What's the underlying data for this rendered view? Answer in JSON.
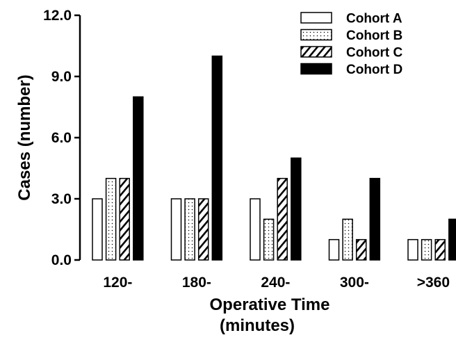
{
  "chart_data": {
    "type": "bar",
    "categories": [
      "120-",
      "180-",
      "240-",
      "300-",
      ">360"
    ],
    "series": [
      {
        "name": "Cohort A",
        "values": [
          3,
          3,
          3,
          1,
          1
        ],
        "pattern": "open"
      },
      {
        "name": "Cohort B",
        "values": [
          4,
          3,
          2,
          2,
          1
        ],
        "pattern": "dotted"
      },
      {
        "name": "Cohort C",
        "values": [
          4,
          3,
          4,
          1,
          1
        ],
        "pattern": "hatched"
      },
      {
        "name": "Cohort D",
        "values": [
          8,
          10,
          5,
          4,
          2
        ],
        "pattern": "solid"
      }
    ],
    "xlabel_line1": "Operative Time",
    "xlabel_line2": "(minutes)",
    "ylabel": "Cases (number)",
    "ylim": [
      0,
      12
    ],
    "yticks": [
      "0.0",
      "3.0",
      "6.0",
      "9.0",
      "12.0"
    ],
    "ytick_values": [
      0,
      3,
      6,
      9,
      12
    ],
    "grid": false,
    "legend_position": "top-right",
    "colors": {
      "bar_stroke": "#000000",
      "solid_fill": "#000000",
      "open_fill": "#ffffff"
    }
  }
}
